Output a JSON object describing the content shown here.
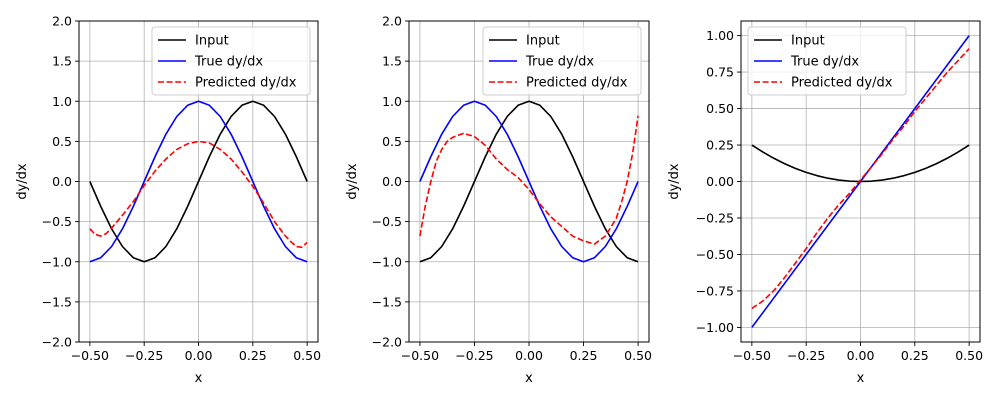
{
  "chart_data": [
    {
      "type": "line",
      "xlabel": "x",
      "ylabel": "dy/dx",
      "xlim": [
        -0.55,
        0.55
      ],
      "ylim": [
        -2.0,
        2.0
      ],
      "xticks": [
        -0.5,
        -0.25,
        0.0,
        0.25,
        0.5
      ],
      "xtick_labels": [
        "−0.50",
        "−0.25",
        "0.00",
        "0.25",
        "0.50"
      ],
      "yticks": [
        -2.0,
        -1.5,
        -1.0,
        -0.5,
        0.0,
        0.5,
        1.0,
        1.5,
        2.0
      ],
      "ytick_labels": [
        "−2.0",
        "−1.5",
        "−1.0",
        "−0.5",
        "0.0",
        "0.5",
        "1.0",
        "1.5",
        "2.0"
      ],
      "grid": true,
      "legend_position": "upper right",
      "series": [
        {
          "name": "Input",
          "color": "#000000",
          "dash": "solid",
          "x": [
            -0.5,
            -0.45,
            -0.4,
            -0.35,
            -0.3,
            -0.25,
            -0.2,
            -0.15,
            -0.1,
            -0.05,
            0,
            0.05,
            0.1,
            0.15,
            0.2,
            0.25,
            0.3,
            0.35,
            0.4,
            0.45,
            0.5
          ],
          "y": [
            0,
            -0.31,
            -0.59,
            -0.81,
            -0.95,
            -1,
            -0.95,
            -0.81,
            -0.59,
            -0.31,
            0,
            0.31,
            0.59,
            0.81,
            0.95,
            1,
            0.95,
            0.81,
            0.59,
            0.31,
            0
          ]
        },
        {
          "name": "True dy/dx",
          "color": "#0000ff",
          "dash": "solid",
          "x": [
            -0.5,
            -0.45,
            -0.4,
            -0.35,
            -0.3,
            -0.25,
            -0.2,
            -0.15,
            -0.1,
            -0.05,
            0,
            0.05,
            0.1,
            0.15,
            0.2,
            0.25,
            0.3,
            0.35,
            0.4,
            0.45,
            0.5
          ],
          "y": [
            -1,
            -0.95,
            -0.81,
            -0.59,
            -0.31,
            0,
            0.31,
            0.59,
            0.81,
            0.95,
            1,
            0.95,
            0.81,
            0.59,
            0.31,
            0,
            -0.31,
            -0.59,
            -0.81,
            -0.95,
            -1
          ]
        },
        {
          "name": "Predicted dy/dx",
          "color": "#ff0000",
          "dash": "dashed",
          "x": [
            -0.5,
            -0.475,
            -0.45,
            -0.425,
            -0.4,
            -0.35,
            -0.3,
            -0.25,
            -0.2,
            -0.15,
            -0.1,
            -0.05,
            0,
            0.05,
            0.1,
            0.15,
            0.2,
            0.25,
            0.3,
            0.35,
            0.4,
            0.425,
            0.45,
            0.475,
            0.5
          ],
          "y": [
            -0.59,
            -0.66,
            -0.68,
            -0.65,
            -0.58,
            -0.42,
            -0.25,
            -0.05,
            0.13,
            0.28,
            0.4,
            0.47,
            0.5,
            0.48,
            0.4,
            0.28,
            0.12,
            -0.06,
            -0.27,
            -0.5,
            -0.68,
            -0.75,
            -0.81,
            -0.82,
            -0.76
          ]
        }
      ]
    },
    {
      "type": "line",
      "xlabel": "x",
      "ylabel": "dy/dx",
      "xlim": [
        -0.55,
        0.55
      ],
      "ylim": [
        -2.0,
        2.0
      ],
      "xticks": [
        -0.5,
        -0.25,
        0.0,
        0.25,
        0.5
      ],
      "xtick_labels": [
        "−0.50",
        "−0.25",
        "0.00",
        "0.25",
        "0.50"
      ],
      "yticks": [
        -2.0,
        -1.5,
        -1.0,
        -0.5,
        0.0,
        0.5,
        1.0,
        1.5,
        2.0
      ],
      "ytick_labels": [
        "−2.0",
        "−1.5",
        "−1.0",
        "−0.5",
        "0.0",
        "0.5",
        "1.0",
        "1.5",
        "2.0"
      ],
      "grid": true,
      "legend_position": "upper right",
      "series": [
        {
          "name": "Input",
          "color": "#000000",
          "dash": "solid",
          "x": [
            -0.5,
            -0.45,
            -0.4,
            -0.35,
            -0.3,
            -0.25,
            -0.2,
            -0.15,
            -0.1,
            -0.05,
            0,
            0.05,
            0.1,
            0.15,
            0.2,
            0.25,
            0.3,
            0.35,
            0.4,
            0.45,
            0.5
          ],
          "y": [
            -1,
            -0.95,
            -0.81,
            -0.59,
            -0.31,
            0,
            0.31,
            0.59,
            0.81,
            0.95,
            1,
            0.95,
            0.81,
            0.59,
            0.31,
            0,
            -0.31,
            -0.59,
            -0.81,
            -0.95,
            -1
          ]
        },
        {
          "name": "True dy/dx",
          "color": "#0000ff",
          "dash": "solid",
          "x": [
            -0.5,
            -0.45,
            -0.4,
            -0.35,
            -0.3,
            -0.25,
            -0.2,
            -0.15,
            -0.1,
            -0.05,
            0,
            0.05,
            0.1,
            0.15,
            0.2,
            0.25,
            0.3,
            0.35,
            0.4,
            0.45,
            0.5
          ],
          "y": [
            0,
            0.31,
            0.59,
            0.81,
            0.95,
            1,
            0.95,
            0.81,
            0.59,
            0.31,
            0,
            -0.31,
            -0.59,
            -0.81,
            -0.95,
            -1,
            -0.95,
            -0.81,
            -0.59,
            -0.31,
            0
          ]
        },
        {
          "name": "Predicted dy/dx",
          "color": "#ff0000",
          "dash": "dashed",
          "x": [
            -0.5,
            -0.475,
            -0.45,
            -0.425,
            -0.4,
            -0.375,
            -0.35,
            -0.3,
            -0.25,
            -0.2,
            -0.15,
            -0.1,
            -0.05,
            0,
            0.05,
            0.1,
            0.15,
            0.2,
            0.25,
            0.3,
            0.35,
            0.4,
            0.425,
            0.45,
            0.475,
            0.5
          ],
          "y": [
            -0.68,
            -0.3,
            0.0,
            0.25,
            0.4,
            0.5,
            0.55,
            0.6,
            0.56,
            0.45,
            0.28,
            0.15,
            0.05,
            -0.1,
            -0.28,
            -0.44,
            -0.56,
            -0.68,
            -0.74,
            -0.78,
            -0.68,
            -0.46,
            -0.25,
            0.0,
            0.35,
            0.82
          ]
        }
      ]
    },
    {
      "type": "line",
      "xlabel": "x",
      "ylabel": "dy/dx",
      "xlim": [
        -0.55,
        0.55
      ],
      "ylim": [
        -1.1,
        1.1
      ],
      "xticks": [
        -0.5,
        -0.25,
        0.0,
        0.25,
        0.5
      ],
      "xtick_labels": [
        "−0.50",
        "−0.25",
        "0.00",
        "0.25",
        "0.50"
      ],
      "yticks": [
        -1.0,
        -0.75,
        -0.5,
        -0.25,
        0.0,
        0.25,
        0.5,
        0.75,
        1.0
      ],
      "ytick_labels": [
        "−1.00",
        "−0.75",
        "−0.50",
        "−0.25",
        "0.00",
        "0.25",
        "0.50",
        "0.75",
        "1.00"
      ],
      "grid": true,
      "legend_position": "upper left",
      "series": [
        {
          "name": "Input",
          "color": "#000000",
          "dash": "solid",
          "x": [
            -0.5,
            -0.45,
            -0.4,
            -0.35,
            -0.3,
            -0.25,
            -0.2,
            -0.15,
            -0.1,
            -0.05,
            0,
            0.05,
            0.1,
            0.15,
            0.2,
            0.25,
            0.3,
            0.35,
            0.4,
            0.45,
            0.5
          ],
          "y": [
            0.25,
            0.2025,
            0.16,
            0.1225,
            0.09,
            0.0625,
            0.04,
            0.0225,
            0.01,
            0.0025,
            0,
            0.0025,
            0.01,
            0.0225,
            0.04,
            0.0625,
            0.09,
            0.1225,
            0.16,
            0.2025,
            0.25
          ]
        },
        {
          "name": "True dy/dx",
          "color": "#0000ff",
          "dash": "solid",
          "x": [
            -0.5,
            0.5
          ],
          "y": [
            -1.0,
            1.0
          ]
        },
        {
          "name": "Predicted dy/dx",
          "color": "#ff0000",
          "dash": "dashed",
          "x": [
            -0.5,
            -0.45,
            -0.4,
            -0.35,
            -0.3,
            -0.25,
            -0.2,
            -0.15,
            -0.1,
            -0.05,
            0,
            0.05,
            0.1,
            0.15,
            0.2,
            0.25,
            0.3,
            0.35,
            0.4,
            0.45,
            0.5
          ],
          "y": [
            -0.87,
            -0.82,
            -0.75,
            -0.66,
            -0.56,
            -0.46,
            -0.35,
            -0.25,
            -0.16,
            -0.08,
            0.01,
            0.1,
            0.19,
            0.29,
            0.38,
            0.48,
            0.57,
            0.66,
            0.75,
            0.83,
            0.91
          ]
        }
      ]
    }
  ]
}
